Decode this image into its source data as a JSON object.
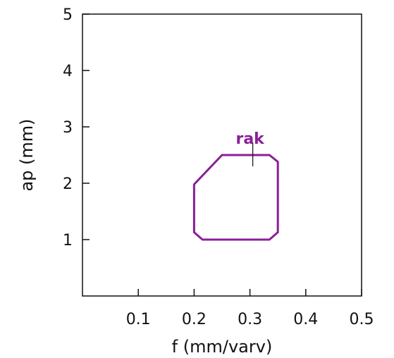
{
  "chart_data": {
    "type": "area",
    "title": "",
    "xlabel": "f (mm/varv)",
    "ylabel": "ap (mm)",
    "xlim": [
      0,
      0.5
    ],
    "ylim": [
      0,
      5
    ],
    "xticks": [
      0.1,
      0.2,
      0.3,
      0.4,
      0.5
    ],
    "yticks": [
      1,
      2,
      3,
      4,
      5
    ],
    "xtick_labels": [
      "0.1",
      "0.2",
      "0.3",
      "0.4",
      "0.5"
    ],
    "ytick_labels": [
      "1",
      "2",
      "3",
      "4",
      "5"
    ],
    "grid": false,
    "series": [
      {
        "name": "rak",
        "color": "#8b1f98",
        "label_point": [
          0.295,
          2.7
        ],
        "outline": [
          [
            0.25,
            2.5
          ],
          [
            0.335,
            2.5
          ],
          [
            0.35,
            2.38
          ],
          [
            0.35,
            1.13
          ],
          [
            0.335,
            1.0
          ],
          [
            0.215,
            1.0
          ],
          [
            0.2,
            1.13
          ],
          [
            0.2,
            1.98
          ]
        ]
      }
    ]
  }
}
